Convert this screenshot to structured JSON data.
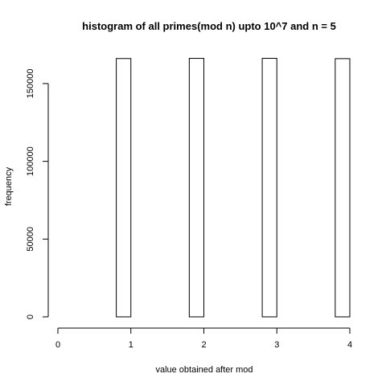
{
  "chart_data": {
    "type": "bar",
    "title": "histogram of all primes(mod n) upto 10^7 and n = 5",
    "xlabel": "value obtained after mod",
    "ylabel": "frequency",
    "xlim": [
      0,
      4
    ],
    "ylim": [
      0,
      166500
    ],
    "xticks": [
      "0",
      "1",
      "2",
      "3",
      "4"
    ],
    "yticks": [
      "0",
      "50000",
      "100000",
      "150000"
    ],
    "bins": [
      {
        "start": 0.0,
        "end": 0.2,
        "value": 0
      },
      {
        "start": 0.2,
        "end": 0.4,
        "value": 0
      },
      {
        "start": 0.4,
        "end": 0.6,
        "value": 0
      },
      {
        "start": 0.6,
        "end": 0.8,
        "value": 0
      },
      {
        "start": 0.8,
        "end": 1.0,
        "value": 166104
      },
      {
        "start": 1.0,
        "end": 1.2,
        "value": 0
      },
      {
        "start": 1.2,
        "end": 1.4,
        "value": 0
      },
      {
        "start": 1.4,
        "end": 1.6,
        "value": 0
      },
      {
        "start": 1.6,
        "end": 1.8,
        "value": 0
      },
      {
        "start": 1.8,
        "end": 2.0,
        "value": 166212
      },
      {
        "start": 2.0,
        "end": 2.2,
        "value": 0
      },
      {
        "start": 2.2,
        "end": 2.4,
        "value": 0
      },
      {
        "start": 2.4,
        "end": 2.6,
        "value": 0
      },
      {
        "start": 2.6,
        "end": 2.8,
        "value": 0
      },
      {
        "start": 2.8,
        "end": 3.0,
        "value": 166230
      },
      {
        "start": 3.0,
        "end": 3.2,
        "value": 0
      },
      {
        "start": 3.2,
        "end": 3.4,
        "value": 0
      },
      {
        "start": 3.4,
        "end": 3.6,
        "value": 0
      },
      {
        "start": 3.6,
        "end": 3.8,
        "value": 0
      },
      {
        "start": 3.8,
        "end": 4.0,
        "value": 166032
      }
    ]
  }
}
